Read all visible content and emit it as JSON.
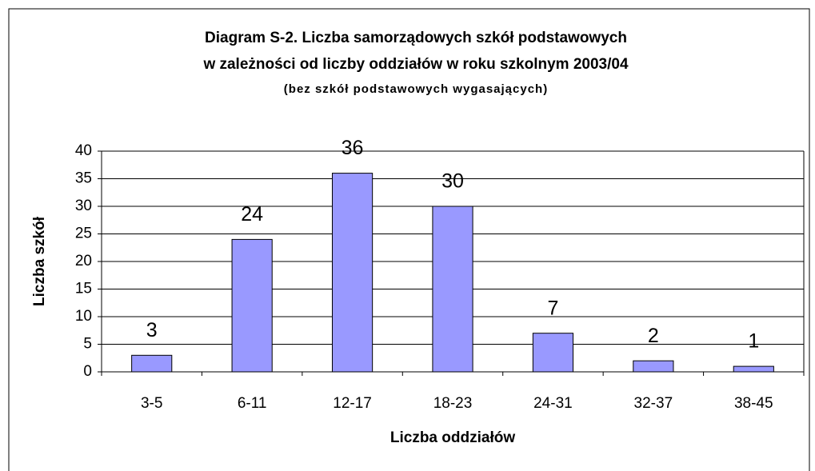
{
  "chart_data": {
    "type": "bar",
    "title": [
      "Diagram S-2. Liczba samorządowych szkół podstawowych",
      "w zależności od liczby oddziałów w roku szkolnym 2003/04"
    ],
    "subtitle": "(bez szkół podstawowych wygasających)",
    "x_label": "Liczba oddziałów",
    "y_label": "Liczba szkół",
    "categories": [
      "3-5",
      "6-11",
      "12-17",
      "18-23",
      "24-31",
      "32-37",
      "38-45"
    ],
    "values": [
      3,
      24,
      36,
      30,
      7,
      2,
      1
    ],
    "color": "#9999ff",
    "ylim": [
      0,
      40
    ],
    "yticks": [
      0,
      5,
      10,
      15,
      20,
      25,
      30,
      35,
      40
    ],
    "grid": true
  }
}
